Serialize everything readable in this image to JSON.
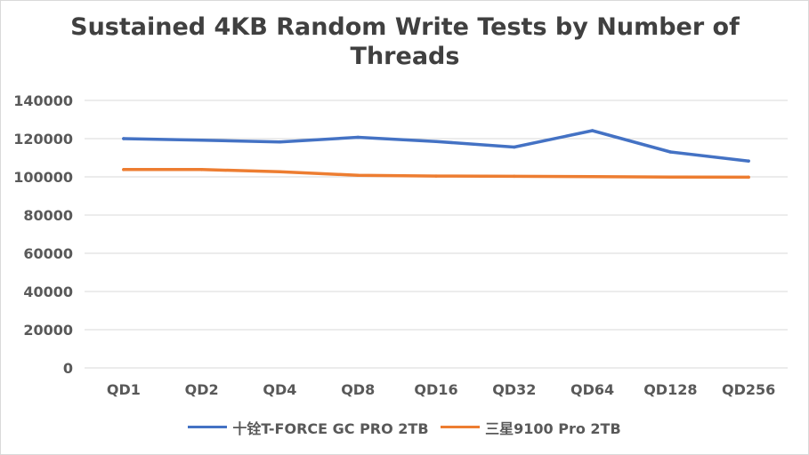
{
  "chart_data": {
    "type": "line",
    "title": "Sustained 4KB Random Write Tests by Number of Threads",
    "categories": [
      "QD1",
      "QD2",
      "QD4",
      "QD8",
      "QD16",
      "QD32",
      "QD64",
      "QD128",
      "QD256"
    ],
    "series": [
      {
        "name": "十铨T-FORCE GC PRO 2TB",
        "color": "#4472c4",
        "values": [
          120000,
          119200,
          118300,
          120700,
          118500,
          115600,
          124200,
          113000,
          108300
        ]
      },
      {
        "name": "三星9100 Pro 2TB",
        "color": "#ed7d31",
        "values": [
          103800,
          103800,
          102700,
          100800,
          100400,
          100300,
          100100,
          99900,
          99800
        ]
      }
    ],
    "y_ticks": [
      "0",
      "20000",
      "40000",
      "60000",
      "80000",
      "100000",
      "120000",
      "140000"
    ],
    "ylim": [
      0,
      140000
    ],
    "grid": true,
    "legend_position": "bottom"
  }
}
